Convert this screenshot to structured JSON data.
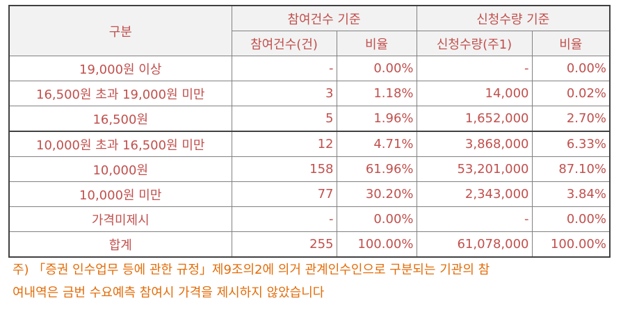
{
  "header": {
    "category": "구분",
    "group1": "참여건수 기준",
    "group2": "신청수량 기준",
    "col1": "참여건수(건)",
    "col2": "비율",
    "col3": "신청수량(주1)",
    "col4": "비율"
  },
  "rows": [
    {
      "label": "19,000원 이상",
      "count": "-",
      "count_ratio": "0.00%",
      "qty": "-",
      "qty_ratio": "0.00%"
    },
    {
      "label": "16,500원 초과 19,000원 미만",
      "count": "3",
      "count_ratio": "1.18%",
      "qty": "14,000",
      "qty_ratio": "0.02%"
    },
    {
      "label": "16,500원",
      "count": "5",
      "count_ratio": "1.96%",
      "qty": "1,652,000",
      "qty_ratio": "2.70%"
    },
    {
      "label": "10,000원 초과 16,500원 미만",
      "count": "12",
      "count_ratio": "4.71%",
      "qty": "3,868,000",
      "qty_ratio": "6.33%"
    },
    {
      "label": "10,000원",
      "count": "158",
      "count_ratio": "61.96%",
      "qty": "53,201,000",
      "qty_ratio": "87.10%"
    },
    {
      "label": "10,000원 미만",
      "count": "77",
      "count_ratio": "30.20%",
      "qty": "2,343,000",
      "qty_ratio": "3.84%"
    },
    {
      "label": "가격미제시",
      "count": "-",
      "count_ratio": "0.00%",
      "qty": "-",
      "qty_ratio": "0.00%"
    },
    {
      "label": "합계",
      "count": "255",
      "count_ratio": "100.00%",
      "qty": "61,078,000",
      "qty_ratio": "100.00%"
    }
  ],
  "note_line1": "주) 「증권 인수업무 등에 관한 규정」제9조의2에 의거 관계인수인으로 구분되는 기관의 참",
  "note_line2": "여내역은 금번 수요예측 참여시 가격을 제시하지 않았습니다"
}
